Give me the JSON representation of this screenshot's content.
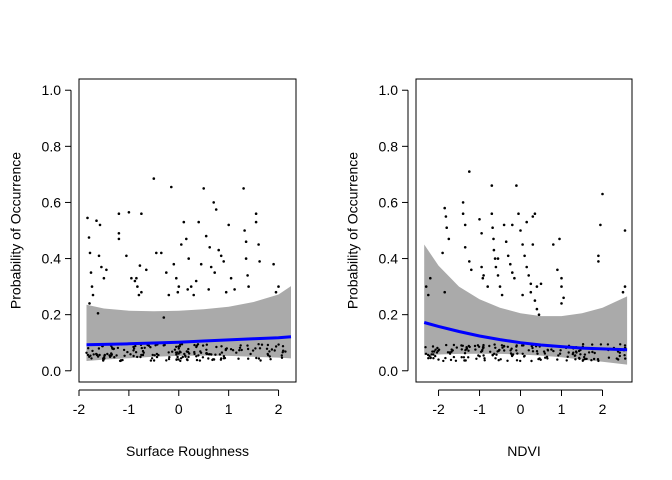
{
  "chart_data": [
    {
      "type": "scatter",
      "xlabel": "Surface Roughness",
      "ylabel": "Probability of Occurrence",
      "xlim": [
        -2.0,
        2.35
      ],
      "ylim": [
        -0.04,
        1.04
      ],
      "xticks": [
        -2,
        -1,
        0,
        1,
        2
      ],
      "yticks": [
        0.0,
        0.2,
        0.4,
        0.6,
        0.8,
        1.0
      ],
      "xtick_labels": [
        "-2",
        "-1",
        "0",
        "1",
        "2"
      ],
      "ytick_labels": [
        "0.0",
        "0.2",
        "0.4",
        "0.6",
        "0.8",
        "1.0"
      ],
      "fit_color": "#0000ff",
      "band_color": "#aaaaaa",
      "fit": {
        "x": [
          -1.85,
          -1.5,
          -1.0,
          -0.5,
          0.0,
          0.5,
          1.0,
          1.5,
          2.0,
          2.25
        ],
        "y": [
          0.093,
          0.094,
          0.096,
          0.099,
          0.102,
          0.106,
          0.11,
          0.114,
          0.118,
          0.121
        ]
      },
      "band": {
        "x": [
          -1.85,
          -1.5,
          -1.0,
          -0.5,
          0.0,
          0.5,
          1.0,
          1.5,
          2.0,
          2.25
        ],
        "lower": [
          0.035,
          0.04,
          0.045,
          0.05,
          0.053,
          0.054,
          0.053,
          0.05,
          0.047,
          0.044
        ],
        "upper": [
          0.235,
          0.222,
          0.214,
          0.212,
          0.214,
          0.219,
          0.228,
          0.245,
          0.272,
          0.302
        ]
      },
      "points": [
        [
          -1.83,
          0.545
        ],
        [
          -1.8,
          0.475
        ],
        [
          -1.78,
          0.42
        ],
        [
          -1.76,
          0.35
        ],
        [
          -1.74,
          0.3
        ],
        [
          -1.72,
          0.27
        ],
        [
          -1.79,
          0.24
        ],
        [
          -1.6,
          0.41
        ],
        [
          -1.55,
          0.37
        ],
        [
          -1.5,
          0.33
        ],
        [
          -1.45,
          0.36
        ],
        [
          -1.58,
          0.52
        ],
        [
          -1.62,
          0.205
        ],
        [
          -1.65,
          0.535
        ],
        [
          -1.2,
          0.56
        ],
        [
          -1.2,
          0.49
        ],
        [
          -1.2,
          0.47
        ],
        [
          -1.05,
          0.41
        ],
        [
          -1.0,
          0.565
        ],
        [
          -0.95,
          0.33
        ],
        [
          -0.88,
          0.32
        ],
        [
          -0.83,
          0.3
        ],
        [
          -0.78,
          0.375
        ],
        [
          -0.75,
          0.56
        ],
        [
          -0.8,
          0.27
        ],
        [
          -0.75,
          0.28
        ],
        [
          -0.5,
          0.685
        ],
        [
          -0.45,
          0.42
        ],
        [
          -0.35,
          0.42
        ],
        [
          -0.3,
          0.19
        ],
        [
          -0.25,
          0.35
        ],
        [
          -0.2,
          0.27
        ],
        [
          -0.15,
          0.655
        ],
        [
          -0.1,
          0.38
        ],
        [
          -0.05,
          0.33
        ],
        [
          0.0,
          0.3
        ],
        [
          0.05,
          0.45
        ],
        [
          0.1,
          0.53
        ],
        [
          0.15,
          0.47
        ],
        [
          0.2,
          0.4
        ],
        [
          0.25,
          0.3
        ],
        [
          0.3,
          0.27
        ],
        [
          0.35,
          0.32
        ],
        [
          0.4,
          0.53
        ],
        [
          0.45,
          0.38
        ],
        [
          0.5,
          0.65
        ],
        [
          0.55,
          0.48
        ],
        [
          0.6,
          0.29
        ],
        [
          0.65,
          0.37
        ],
        [
          0.7,
          0.6
        ],
        [
          0.75,
          0.575
        ],
        [
          0.8,
          0.43
        ],
        [
          0.85,
          0.41
        ],
        [
          0.9,
          0.39
        ],
        [
          0.95,
          0.28
        ],
        [
          1.0,
          0.52
        ],
        [
          1.05,
          0.33
        ],
        [
          1.3,
          0.65
        ],
        [
          1.32,
          0.5
        ],
        [
          1.35,
          0.46
        ],
        [
          1.35,
          0.4
        ],
        [
          1.38,
          0.34
        ],
        [
          1.4,
          0.3
        ],
        [
          1.55,
          0.56
        ],
        [
          1.55,
          0.53
        ],
        [
          1.6,
          0.45
        ],
        [
          1.62,
          0.39
        ],
        [
          1.9,
          0.38
        ],
        [
          1.95,
          0.28
        ],
        [
          2.0,
          0.3
        ],
        [
          -0.85,
          0.33
        ],
        [
          -0.65,
          0.36
        ],
        [
          0.62,
          0.44
        ],
        [
          0.72,
          0.35
        ],
        [
          -0.02,
          0.28
        ],
        [
          0.18,
          0.29
        ],
        [
          1.12,
          0.29
        ]
      ]
    },
    {
      "type": "scatter",
      "xlabel": "NDVI",
      "ylabel": "Probability of Occurrence",
      "xlim": [
        -2.55,
        2.72
      ],
      "ylim": [
        -0.04,
        1.04
      ],
      "xticks": [
        -2,
        -1,
        0,
        1,
        2
      ],
      "yticks": [
        0.0,
        0.2,
        0.4,
        0.6,
        0.8,
        1.0
      ],
      "xtick_labels": [
        "-2",
        "-1",
        "0",
        "1",
        "2"
      ],
      "ytick_labels": [
        "0.0",
        "0.2",
        "0.4",
        "0.6",
        "0.8",
        "1.0"
      ],
      "fit_color": "#0000ff",
      "band_color": "#aaaaaa",
      "fit": {
        "x": [
          -2.35,
          -2.0,
          -1.5,
          -1.0,
          -0.5,
          0.0,
          0.5,
          1.0,
          1.5,
          2.0,
          2.6
        ],
        "y": [
          0.172,
          0.158,
          0.14,
          0.124,
          0.111,
          0.1,
          0.092,
          0.086,
          0.081,
          0.078,
          0.075
        ]
      },
      "band": {
        "x": [
          -2.35,
          -2.0,
          -1.5,
          -1.0,
          -0.5,
          0.0,
          0.5,
          1.0,
          1.5,
          2.0,
          2.6
        ],
        "lower": [
          0.056,
          0.058,
          0.06,
          0.061,
          0.06,
          0.058,
          0.054,
          0.048,
          0.04,
          0.032,
          0.022
        ],
        "upper": [
          0.45,
          0.375,
          0.3,
          0.255,
          0.225,
          0.205,
          0.195,
          0.195,
          0.205,
          0.225,
          0.265
        ]
      },
      "points": [
        [
          -2.3,
          0.3
        ],
        [
          -2.25,
          0.27
        ],
        [
          -2.2,
          0.33
        ],
        [
          -1.85,
          0.58
        ],
        [
          -1.82,
          0.55
        ],
        [
          -1.8,
          0.51
        ],
        [
          -1.75,
          0.47
        ],
        [
          -1.9,
          0.42
        ],
        [
          -1.85,
          0.28
        ],
        [
          -1.4,
          0.6
        ],
        [
          -1.4,
          0.56
        ],
        [
          -1.35,
          0.52
        ],
        [
          -1.25,
          0.71
        ],
        [
          -1.35,
          0.44
        ],
        [
          -1.25,
          0.39
        ],
        [
          -1.2,
          0.36
        ],
        [
          -1.0,
          0.54
        ],
        [
          -0.95,
          0.49
        ],
        [
          -0.95,
          0.37
        ],
        [
          -0.92,
          0.33
        ],
        [
          -0.8,
          0.3
        ],
        [
          -0.7,
          0.66
        ],
        [
          -0.7,
          0.56
        ],
        [
          -0.68,
          0.51
        ],
        [
          -0.66,
          0.47
        ],
        [
          -0.65,
          0.43
        ],
        [
          -0.62,
          0.4
        ],
        [
          -0.6,
          0.37
        ],
        [
          -0.55,
          0.34
        ],
        [
          -0.5,
          0.3
        ],
        [
          -0.45,
          0.27
        ],
        [
          -0.4,
          0.52
        ],
        [
          -0.35,
          0.46
        ],
        [
          -0.3,
          0.41
        ],
        [
          -0.25,
          0.38
        ],
        [
          -0.2,
          0.35
        ],
        [
          -0.15,
          0.33
        ],
        [
          -0.1,
          0.66
        ],
        [
          -0.05,
          0.56
        ],
        [
          0.0,
          0.5
        ],
        [
          0.05,
          0.45
        ],
        [
          0.1,
          0.41
        ],
        [
          0.15,
          0.37
        ],
        [
          0.2,
          0.34
        ],
        [
          0.25,
          0.31
        ],
        [
          0.3,
          0.55
        ],
        [
          0.35,
          0.56
        ],
        [
          0.3,
          0.45
        ],
        [
          0.25,
          0.28
        ],
        [
          0.35,
          0.25
        ],
        [
          0.4,
          0.22
        ],
        [
          0.45,
          0.2
        ],
        [
          0.4,
          0.3
        ],
        [
          0.5,
          0.31
        ],
        [
          0.8,
          0.45
        ],
        [
          0.9,
          0.36
        ],
        [
          0.95,
          0.47
        ],
        [
          1.0,
          0.3
        ],
        [
          1.05,
          0.26
        ],
        [
          1.0,
          0.24
        ],
        [
          2.0,
          0.63
        ],
        [
          1.95,
          0.52
        ],
        [
          1.9,
          0.41
        ],
        [
          1.9,
          0.39
        ],
        [
          2.55,
          0.5
        ],
        [
          2.55,
          0.3
        ],
        [
          2.5,
          0.28
        ],
        [
          -0.9,
          0.34
        ],
        [
          -0.2,
          0.52
        ],
        [
          0.15,
          0.53
        ],
        [
          0.05,
          0.27
        ],
        [
          -0.55,
          0.4
        ],
        [
          1.0,
          0.33
        ]
      ]
    }
  ]
}
